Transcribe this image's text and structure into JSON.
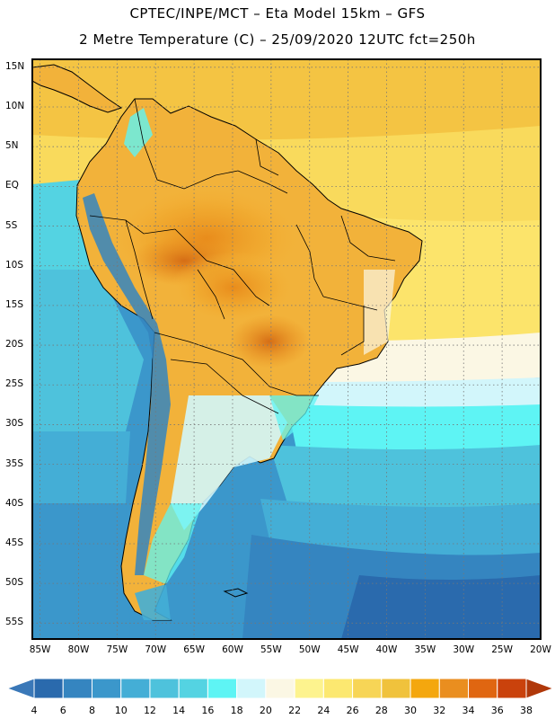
{
  "title": {
    "line1": "CPTEC/INPE/MCT –  Eta Model 15km – GFS",
    "line2": "2 Metre Temperature (C) – 25/09/2020 12UTC fct=250h"
  },
  "map": {
    "region": "South America",
    "variable": "2 Metre Temperature",
    "units": "C",
    "lat_range": [
      -57,
      16
    ],
    "lon_range": [
      -86,
      -20
    ],
    "lat_labels": [
      {
        "text": "15N",
        "value": 15
      },
      {
        "text": "10N",
        "value": 10
      },
      {
        "text": "5N",
        "value": 5
      },
      {
        "text": "EQ",
        "value": 0
      },
      {
        "text": "5S",
        "value": -5
      },
      {
        "text": "10S",
        "value": -10
      },
      {
        "text": "15S",
        "value": -15
      },
      {
        "text": "20S",
        "value": -20
      },
      {
        "text": "25S",
        "value": -25
      },
      {
        "text": "30S",
        "value": -30
      },
      {
        "text": "35S",
        "value": -35
      },
      {
        "text": "40S",
        "value": -40
      },
      {
        "text": "45S",
        "value": -45
      },
      {
        "text": "50S",
        "value": -50
      },
      {
        "text": "55S",
        "value": -55
      }
    ],
    "lon_labels": [
      {
        "text": "85W",
        "value": -85
      },
      {
        "text": "80W",
        "value": -80
      },
      {
        "text": "75W",
        "value": -75
      },
      {
        "text": "70W",
        "value": -70
      },
      {
        "text": "65W",
        "value": -65
      },
      {
        "text": "60W",
        "value": -60
      },
      {
        "text": "55W",
        "value": -55
      },
      {
        "text": "50W",
        "value": -50
      },
      {
        "text": "45W",
        "value": -45
      },
      {
        "text": "40W",
        "value": -40
      },
      {
        "text": "35W",
        "value": -35
      },
      {
        "text": "30W",
        "value": -30
      },
      {
        "text": "25W",
        "value": -25
      },
      {
        "text": "20W",
        "value": -20
      }
    ]
  },
  "colorbar": {
    "labels": [
      "4",
      "6",
      "8",
      "10",
      "12",
      "14",
      "16",
      "18",
      "20",
      "22",
      "24",
      "26",
      "28",
      "30",
      "32",
      "34",
      "36",
      "38"
    ],
    "colors": [
      "#3a78b8",
      "#2a6aad",
      "#3585c0",
      "#3b97cb",
      "#44aed6",
      "#4ec2dc",
      "#54d3e2",
      "#5ef4f4",
      "#d2f6fb",
      "#fbf7e4",
      "#fdf38e",
      "#fce870",
      "#f7d556",
      "#f0c23c",
      "#f4a70e",
      "#ea8e1f",
      "#e06611",
      "#ca420c",
      "#b0380a"
    ]
  }
}
